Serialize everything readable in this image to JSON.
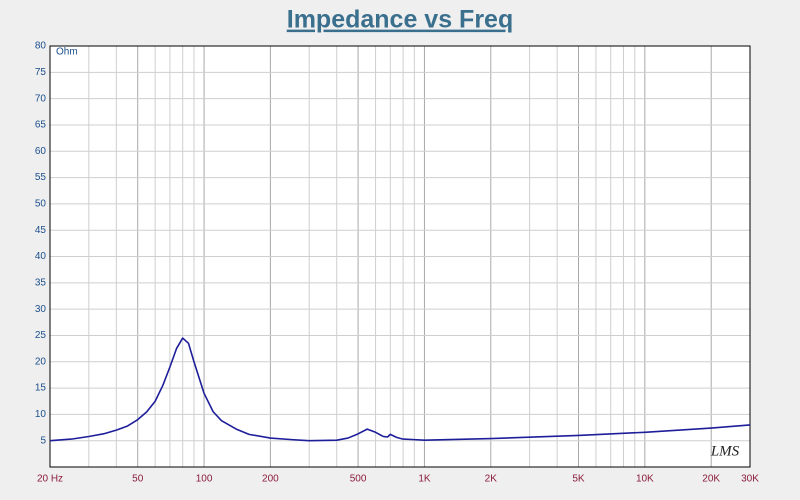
{
  "chart_data": {
    "type": "line",
    "title": "Impedance vs Freq",
    "y_label": "Ohm",
    "watermark": "LMS",
    "x_scale": "log",
    "grid": true,
    "x": [
      20,
      25,
      30,
      35,
      40,
      45,
      50,
      55,
      60,
      65,
      70,
      75,
      80,
      85,
      90,
      100,
      110,
      120,
      140,
      160,
      200,
      250,
      300,
      400,
      450,
      500,
      550,
      600,
      650,
      680,
      700,
      750,
      800,
      900,
      1000,
      2000,
      5000,
      10000,
      20000,
      30000
    ],
    "series": [
      {
        "name": "Impedance",
        "color": "#1e1e9a",
        "values": [
          5.0,
          5.3,
          5.8,
          6.3,
          7.0,
          7.8,
          9.0,
          10.5,
          12.5,
          15.5,
          19,
          22.5,
          24.5,
          23.5,
          20,
          14,
          10.5,
          8.8,
          7.2,
          6.2,
          5.5,
          5.2,
          5.0,
          5.1,
          5.5,
          6.3,
          7.2,
          6.6,
          5.8,
          5.7,
          6.2,
          5.6,
          5.3,
          5.2,
          5.1,
          5.4,
          6.0,
          6.6,
          7.4,
          8.0
        ]
      }
    ],
    "xlim": [
      20,
      30000
    ],
    "xticks": [
      {
        "value": 20,
        "label": "20 Hz"
      },
      50,
      100,
      200,
      500,
      {
        "value": 1000,
        "label": "1K"
      },
      {
        "value": 2000,
        "label": "2K"
      },
      {
        "value": 5000,
        "label": "5K"
      },
      {
        "value": 10000,
        "label": "10K"
      },
      {
        "value": 20000,
        "label": "20K"
      },
      {
        "value": 30000,
        "label": "30K"
      }
    ],
    "x_minor_ticks": [
      30,
      40,
      60,
      70,
      80,
      90,
      300,
      400,
      600,
      700,
      800,
      900,
      3000,
      4000,
      6000,
      7000,
      8000,
      9000
    ],
    "ylim": [
      0,
      80
    ],
    "yticks": [
      5,
      10,
      15,
      20,
      25,
      30,
      35,
      40,
      45,
      50,
      55,
      60,
      65,
      70,
      75,
      80
    ]
  }
}
